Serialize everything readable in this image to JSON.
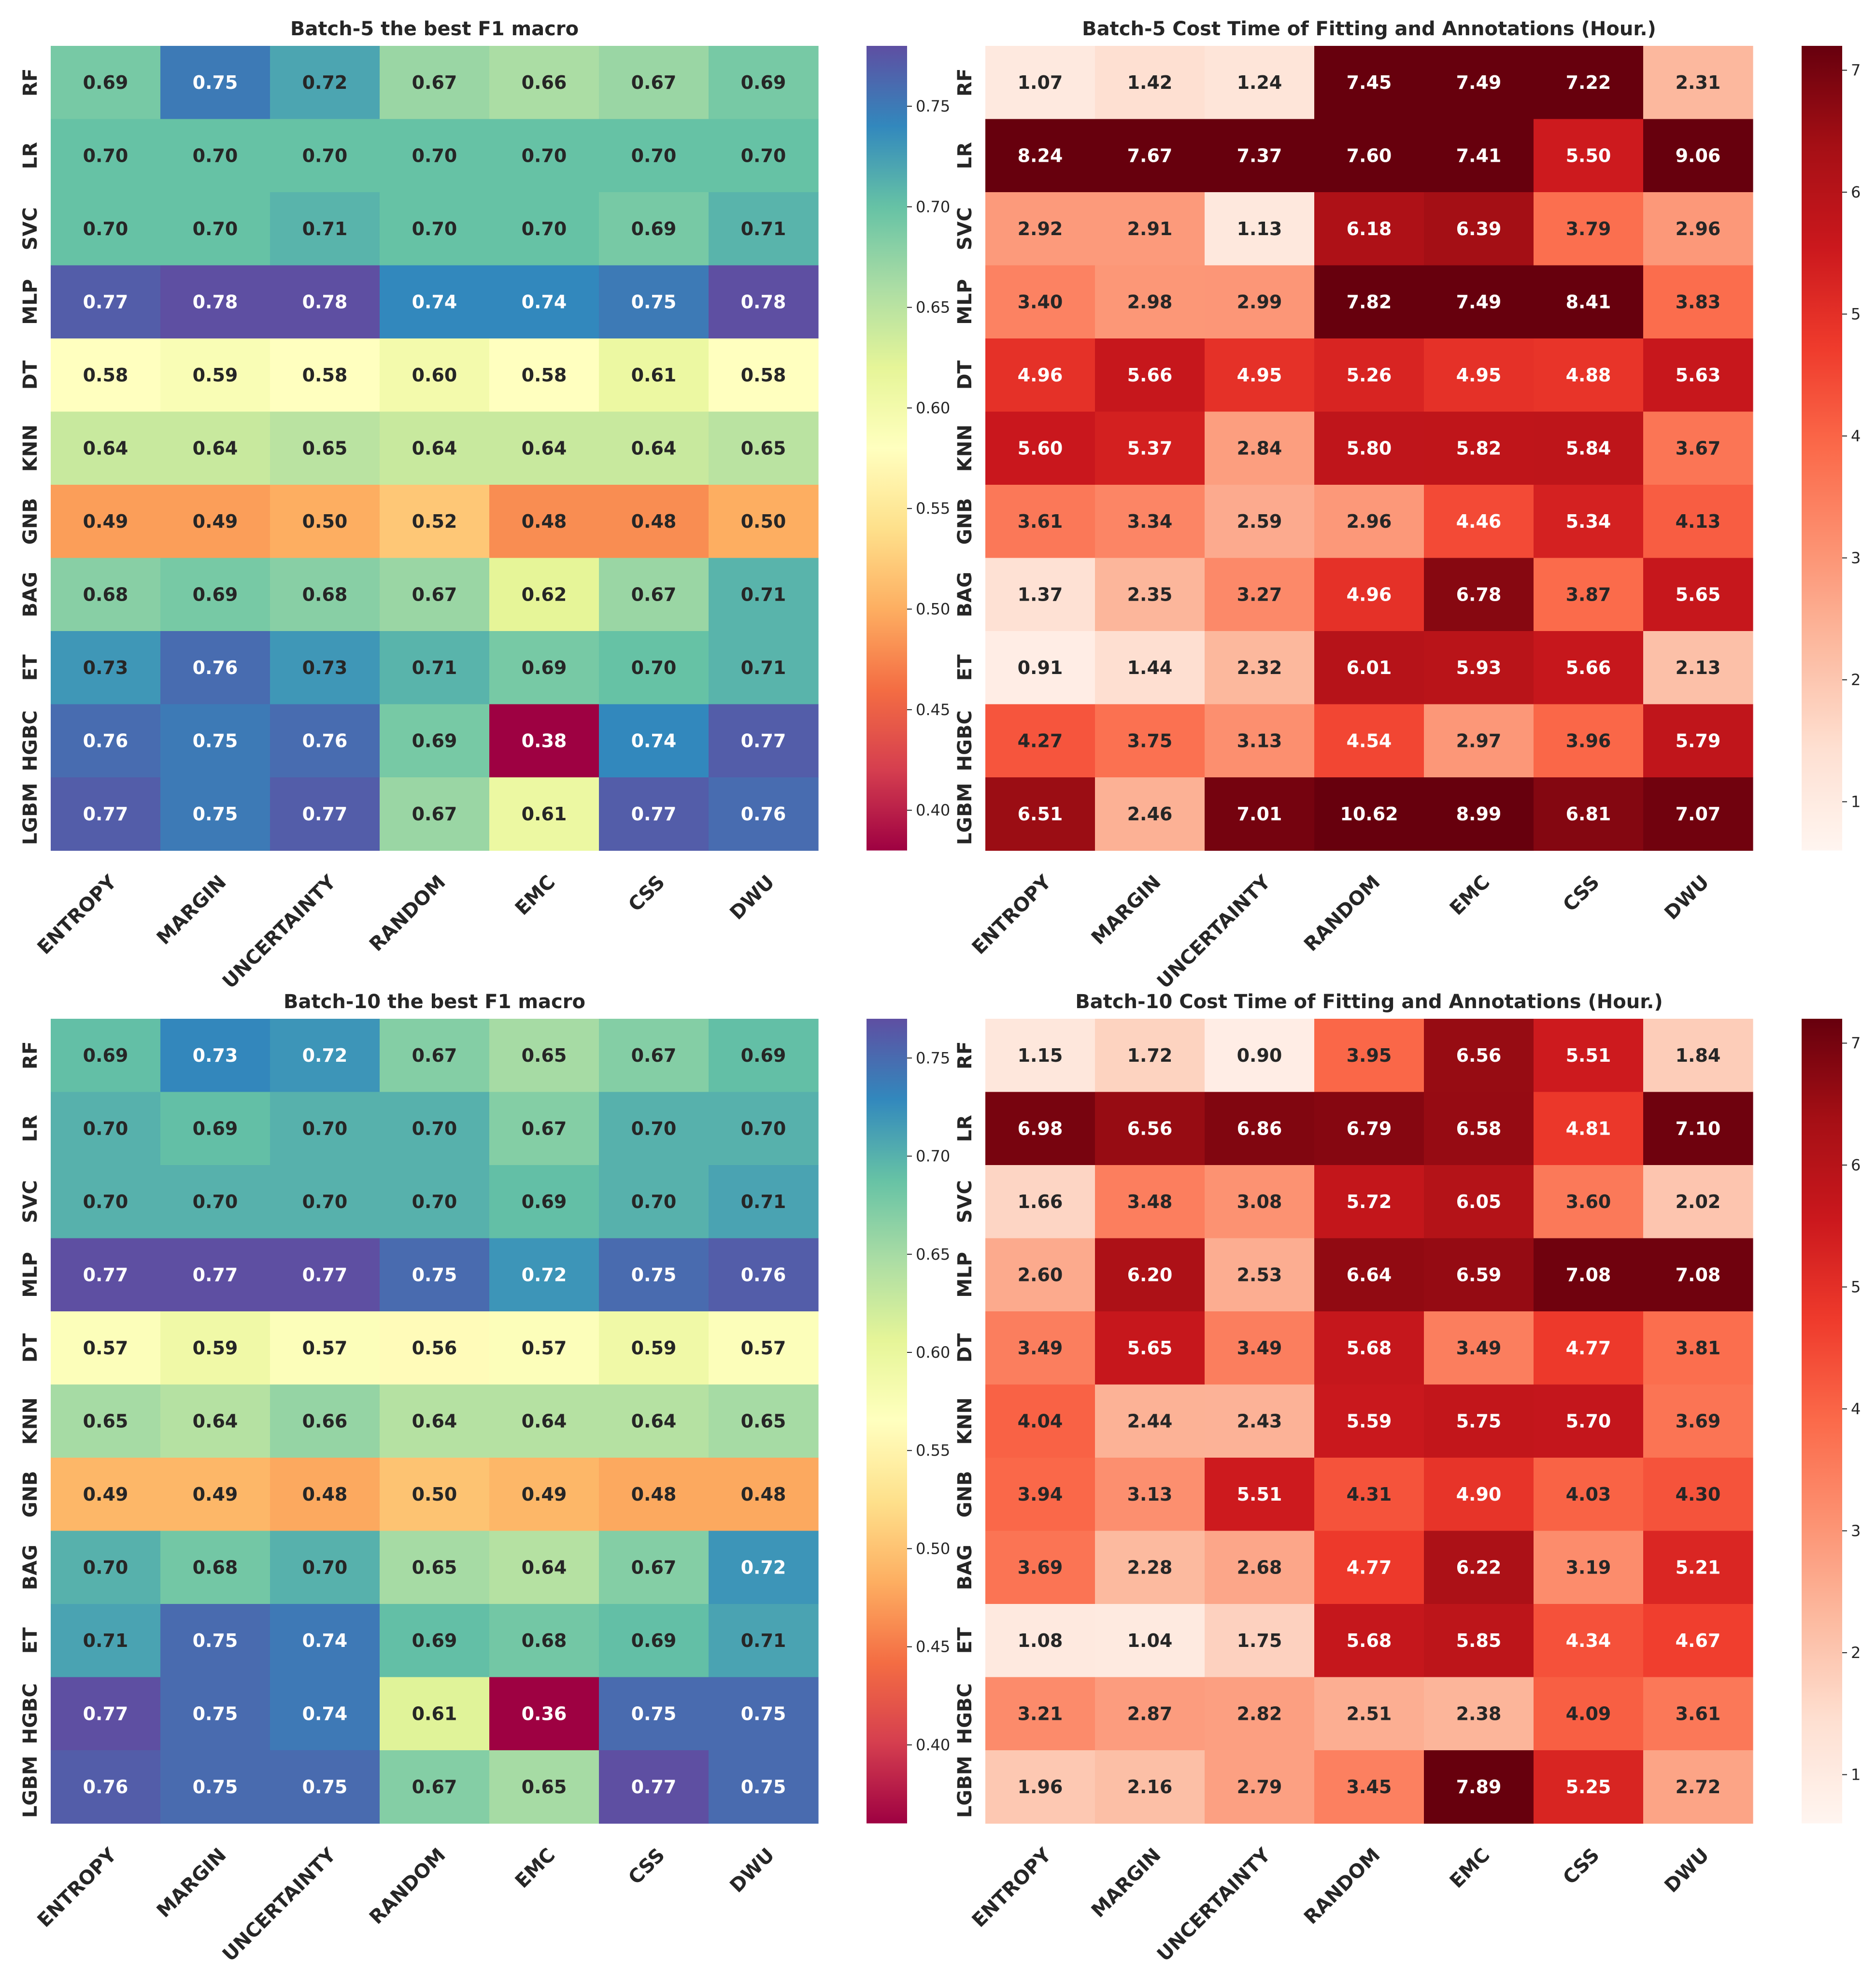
{
  "chart_data": [
    {
      "type": "heatmap",
      "title": "Batch-5 the best F1 macro",
      "rows": [
        "RF",
        "LR",
        "SVC",
        "MLP",
        "DT",
        "KNN",
        "GNB",
        "BAG",
        "ET",
        "HGBC",
        "LGBM"
      ],
      "columns": [
        "ENTROPY",
        "MARGIN",
        "UNCERTAINTY",
        "RANDOM",
        "EMC",
        "CSS",
        "DWU"
      ],
      "values": [
        [
          0.69,
          0.75,
          0.72,
          0.67,
          0.66,
          0.67,
          0.69
        ],
        [
          0.7,
          0.7,
          0.7,
          0.7,
          0.7,
          0.7,
          0.7
        ],
        [
          0.7,
          0.7,
          0.71,
          0.7,
          0.7,
          0.69,
          0.71
        ],
        [
          0.77,
          0.78,
          0.78,
          0.74,
          0.74,
          0.75,
          0.78
        ],
        [
          0.58,
          0.59,
          0.58,
          0.6,
          0.58,
          0.61,
          0.58
        ],
        [
          0.64,
          0.64,
          0.65,
          0.64,
          0.64,
          0.64,
          0.65
        ],
        [
          0.49,
          0.49,
          0.5,
          0.52,
          0.48,
          0.48,
          0.5
        ],
        [
          0.68,
          0.69,
          0.68,
          0.67,
          0.62,
          0.67,
          0.71
        ],
        [
          0.73,
          0.76,
          0.73,
          0.71,
          0.69,
          0.7,
          0.71
        ],
        [
          0.76,
          0.75,
          0.76,
          0.69,
          0.38,
          0.74,
          0.77
        ],
        [
          0.77,
          0.75,
          0.77,
          0.67,
          0.61,
          0.77,
          0.76
        ]
      ],
      "colormap": "Spectral",
      "vmin": 0.38,
      "vmax": 0.78,
      "colorbar_ticks": [
        "0.40",
        "0.45",
        "0.50",
        "0.55",
        "0.60",
        "0.65",
        "0.70",
        "0.75"
      ]
    },
    {
      "type": "heatmap",
      "title": "Batch-5 Cost Time of Fitting and Annotations (Hour.)",
      "rows": [
        "RF",
        "LR",
        "SVC",
        "MLP",
        "DT",
        "KNN",
        "GNB",
        "BAG",
        "ET",
        "HGBC",
        "LGBM"
      ],
      "columns": [
        "ENTROPY",
        "MARGIN",
        "UNCERTAINTY",
        "RANDOM",
        "EMC",
        "CSS",
        "DWU"
      ],
      "values": [
        [
          1.07,
          1.42,
          1.24,
          7.45,
          7.49,
          7.22,
          2.31
        ],
        [
          8.24,
          7.67,
          7.37,
          7.6,
          7.41,
          5.5,
          9.06
        ],
        [
          2.92,
          2.91,
          1.13,
          6.18,
          6.39,
          3.79,
          2.96
        ],
        [
          3.4,
          2.98,
          2.99,
          7.82,
          7.49,
          8.41,
          3.83
        ],
        [
          4.96,
          5.66,
          4.95,
          5.26,
          4.95,
          4.88,
          5.63
        ],
        [
          5.6,
          5.37,
          2.84,
          5.8,
          5.82,
          5.84,
          3.67
        ],
        [
          3.61,
          3.34,
          2.59,
          2.96,
          4.46,
          5.34,
          4.13
        ],
        [
          1.37,
          2.35,
          3.27,
          4.96,
          6.78,
          3.87,
          5.65
        ],
        [
          0.91,
          1.44,
          2.32,
          6.01,
          5.93,
          5.66,
          2.13
        ],
        [
          4.27,
          3.75,
          3.13,
          4.54,
          2.97,
          3.96,
          5.79
        ],
        [
          6.51,
          2.46,
          7.01,
          10.62,
          8.99,
          6.81,
          7.07
        ]
      ],
      "colormap": "Reds",
      "vmin": 0.6,
      "vmax": 7.2,
      "colorbar_ticks": [
        "1",
        "2",
        "3",
        "4",
        "5",
        "6",
        "7"
      ]
    },
    {
      "type": "heatmap",
      "title": "Batch-10 the best F1 macro",
      "rows": [
        "RF",
        "LR",
        "SVC",
        "MLP",
        "DT",
        "KNN",
        "GNB",
        "BAG",
        "ET",
        "HGBC",
        "LGBM"
      ],
      "columns": [
        "ENTROPY",
        "MARGIN",
        "UNCERTAINTY",
        "RANDOM",
        "EMC",
        "CSS",
        "DWU"
      ],
      "values": [
        [
          0.69,
          0.73,
          0.72,
          0.67,
          0.65,
          0.67,
          0.69
        ],
        [
          0.7,
          0.69,
          0.7,
          0.7,
          0.67,
          0.7,
          0.7
        ],
        [
          0.7,
          0.7,
          0.7,
          0.7,
          0.69,
          0.7,
          0.71
        ],
        [
          0.77,
          0.77,
          0.77,
          0.75,
          0.72,
          0.75,
          0.76
        ],
        [
          0.57,
          0.59,
          0.57,
          0.56,
          0.57,
          0.59,
          0.57
        ],
        [
          0.65,
          0.64,
          0.66,
          0.64,
          0.64,
          0.64,
          0.65
        ],
        [
          0.49,
          0.49,
          0.48,
          0.5,
          0.49,
          0.48,
          0.48
        ],
        [
          0.7,
          0.68,
          0.7,
          0.65,
          0.64,
          0.67,
          0.72
        ],
        [
          0.71,
          0.75,
          0.74,
          0.69,
          0.68,
          0.69,
          0.71
        ],
        [
          0.77,
          0.75,
          0.74,
          0.61,
          0.36,
          0.75,
          0.75
        ],
        [
          0.76,
          0.75,
          0.75,
          0.67,
          0.65,
          0.77,
          0.75
        ]
      ],
      "colormap": "Spectral",
      "vmin": 0.36,
      "vmax": 0.77,
      "colorbar_ticks": [
        "0.40",
        "0.45",
        "0.50",
        "0.55",
        "0.60",
        "0.65",
        "0.70",
        "0.75"
      ]
    },
    {
      "type": "heatmap",
      "title": "Batch-10 Cost Time of Fitting and Annotations (Hour.)",
      "rows": [
        "RF",
        "LR",
        "SVC",
        "MLP",
        "DT",
        "KNN",
        "GNB",
        "BAG",
        "ET",
        "HGBC",
        "LGBM"
      ],
      "columns": [
        "ENTROPY",
        "MARGIN",
        "UNCERTAINTY",
        "RANDOM",
        "EMC",
        "CSS",
        "DWU"
      ],
      "values": [
        [
          1.15,
          1.72,
          0.9,
          3.95,
          6.56,
          5.51,
          1.84
        ],
        [
          6.98,
          6.56,
          6.86,
          6.79,
          6.58,
          4.81,
          7.1
        ],
        [
          1.66,
          3.48,
          3.08,
          5.72,
          6.05,
          3.6,
          2.02
        ],
        [
          2.6,
          6.2,
          2.53,
          6.64,
          6.59,
          7.08,
          7.08
        ],
        [
          3.49,
          5.65,
          3.49,
          5.68,
          3.49,
          4.77,
          3.81
        ],
        [
          4.04,
          2.44,
          2.43,
          5.59,
          5.75,
          5.7,
          3.69
        ],
        [
          3.94,
          3.13,
          5.51,
          4.31,
          4.9,
          4.03,
          4.3
        ],
        [
          3.69,
          2.28,
          2.68,
          4.77,
          6.22,
          3.19,
          5.21
        ],
        [
          1.08,
          1.04,
          1.75,
          5.68,
          5.85,
          4.34,
          4.67
        ],
        [
          3.21,
          2.87,
          2.82,
          2.51,
          2.38,
          4.09,
          3.61
        ],
        [
          1.96,
          2.16,
          2.79,
          3.45,
          7.89,
          5.25,
          2.72
        ]
      ],
      "colormap": "Reds",
      "vmin": 0.6,
      "vmax": 7.2,
      "colorbar_ticks": [
        "1",
        "2",
        "3",
        "4",
        "5",
        "6",
        "7"
      ]
    }
  ]
}
